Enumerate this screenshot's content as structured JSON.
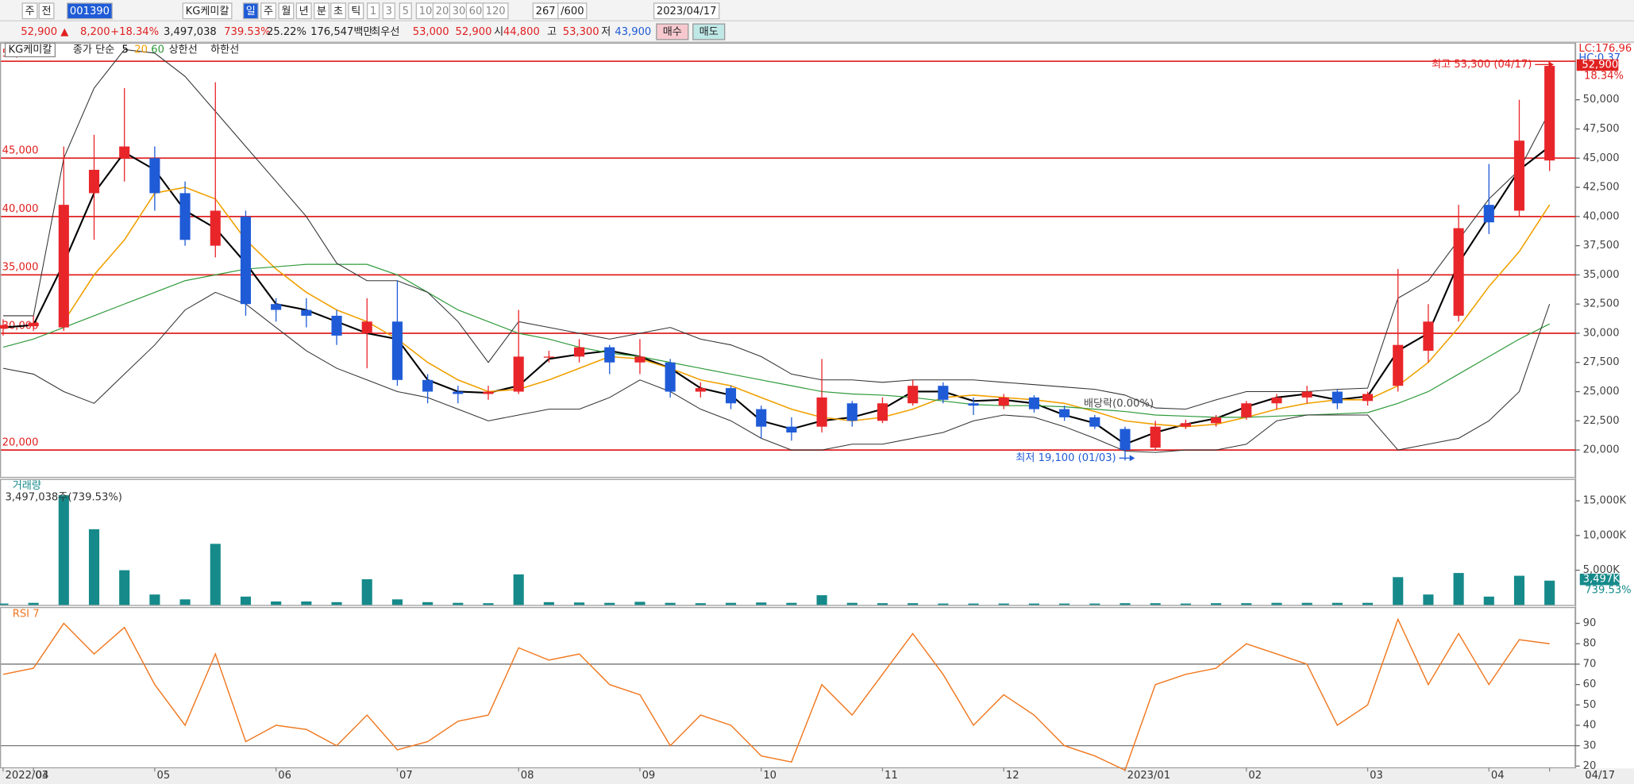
{
  "toolbar": {
    "items": [
      "주",
      "전",
      "001390",
      "KG케미칼",
      "일",
      "주",
      "월",
      "년",
      "분",
      "초",
      "틱",
      "1",
      "3",
      "5",
      "10",
      "20",
      "30",
      "60",
      "120",
      "267",
      "/600",
      "2023/04/17"
    ]
  },
  "quote": {
    "items": [
      "52,900 ▲",
      "8,200",
      "+18.34%",
      "3,497,038",
      "739.53%",
      "25.22%",
      "176,547백만",
      "최우선",
      "53,000",
      "52,900",
      "시",
      "44,800",
      "고",
      "53,300",
      "저",
      "43,900",
      "매수",
      "매도"
    ]
  },
  "chart_data": [
    {
      "type": "candlestick",
      "title": "KG케미칼",
      "ma_label": "종가 단순",
      "categories": [
        "2022/03",
        "04",
        null,
        null,
        null,
        "05",
        null,
        null,
        null,
        "06",
        null,
        null,
        null,
        "07",
        null,
        null,
        null,
        "08",
        null,
        null,
        null,
        "09",
        null,
        null,
        null,
        "10",
        null,
        null,
        null,
        "11",
        null,
        null,
        null,
        "12",
        null,
        null,
        null,
        "2023/01",
        null,
        null,
        null,
        "02",
        null,
        null,
        null,
        "03",
        null,
        null,
        null,
        "04",
        null,
        "04/17"
      ],
      "open": [
        30400,
        30600,
        30500,
        42000,
        45000,
        45000,
        42000,
        37500,
        40000,
        32500,
        32000,
        31500,
        30000,
        31000,
        26000,
        25000,
        24800,
        25000,
        28000,
        28000,
        28800,
        27500,
        27500,
        25000,
        25300,
        23500,
        22000,
        22000,
        24000,
        22500,
        24000,
        25500,
        24000,
        23800,
        24500,
        23500,
        22800,
        21800,
        20200,
        22000,
        22300,
        22800,
        24000,
        24500,
        25000,
        24200,
        25500,
        28500,
        31500,
        41000,
        40500,
        44800
      ],
      "high": [
        31200,
        31500,
        46000,
        47000,
        51000,
        46000,
        43000,
        51500,
        40500,
        33000,
        33000,
        32000,
        33000,
        34500,
        26500,
        25500,
        25500,
        32000,
        28500,
        29500,
        29000,
        29500,
        27800,
        25800,
        25500,
        23800,
        22800,
        27800,
        24200,
        24500,
        26000,
        25800,
        24500,
        24800,
        24700,
        23800,
        23000,
        22000,
        22500,
        22600,
        23000,
        24200,
        24800,
        25500,
        25200,
        25000,
        35500,
        32500,
        41000,
        44500,
        50000,
        53300
      ],
      "low": [
        29800,
        30200,
        30200,
        38000,
        43000,
        40500,
        37500,
        36500,
        31500,
        31000,
        30500,
        29000,
        27000,
        25500,
        24000,
        24000,
        24300,
        24800,
        27500,
        27500,
        26500,
        26500,
        24500,
        24500,
        23500,
        21000,
        20800,
        21500,
        22000,
        22300,
        23800,
        24000,
        23000,
        23500,
        23200,
        22500,
        21800,
        19100,
        20000,
        21800,
        22000,
        22600,
        23500,
        24000,
        23500,
        23800,
        25000,
        27500,
        31000,
        38500,
        40000,
        43900
      ],
      "close": [
        30700,
        30900,
        41000,
        44000,
        46000,
        42000,
        38000,
        40500,
        32500,
        32000,
        31500,
        29800,
        31000,
        26000,
        25000,
        24800,
        25000,
        28000,
        28000,
        28800,
        27500,
        28000,
        25000,
        25300,
        24000,
        22000,
        21500,
        24500,
        22500,
        24000,
        25500,
        24300,
        23800,
        24500,
        23500,
        22800,
        22000,
        20000,
        22000,
        22300,
        22800,
        24000,
        24500,
        25000,
        24000,
        24800,
        29000,
        31000,
        39000,
        39500,
        46500,
        52900
      ],
      "up_color": "#e8262a",
      "down_color": "#1f5bd6",
      "series": [
        {
          "name": "5",
          "color": "#000000",
          "values": [
            30500,
            30700,
            36000,
            42000,
            45500,
            44000,
            40500,
            39000,
            36000,
            32500,
            32000,
            31000,
            30000,
            29500,
            26000,
            25000,
            24900,
            25500,
            27800,
            28200,
            28500,
            28000,
            27000,
            25300,
            24700,
            22500,
            21800,
            22500,
            22800,
            23500,
            25000,
            25000,
            24200,
            24300,
            24000,
            23000,
            22300,
            20500,
            21500,
            22200,
            22700,
            23700,
            24500,
            24800,
            24300,
            24600,
            28500,
            30000,
            36000,
            40000,
            44000,
            46000
          ]
        },
        {
          "name": "20",
          "color": "#f0a000",
          "values": [
            null,
            null,
            31000,
            35000,
            38000,
            42000,
            42500,
            41500,
            38000,
            35500,
            33500,
            32000,
            31000,
            29500,
            27500,
            26000,
            25000,
            25200,
            26000,
            27000,
            28000,
            27800,
            27000,
            26000,
            25500,
            24500,
            23500,
            22800,
            22500,
            22800,
            23500,
            24500,
            24700,
            24500,
            24300,
            24000,
            23300,
            22500,
            22200,
            22000,
            22200,
            22800,
            23500,
            24000,
            24300,
            24300,
            25500,
            27500,
            30500,
            34000,
            37000,
            41000
          ]
        },
        {
          "name": "60",
          "color": "#2e9a3a",
          "values": [
            28800,
            29500,
            30500,
            31500,
            32500,
            33500,
            34500,
            35000,
            35500,
            35700,
            35900,
            35900,
            35900,
            35000,
            33500,
            32000,
            31000,
            30000,
            29500,
            28800,
            28300,
            28000,
            27500,
            27000,
            26500,
            26000,
            25500,
            25000,
            24800,
            24700,
            24500,
            24200,
            23900,
            23800,
            23800,
            23700,
            23500,
            23300,
            23000,
            22900,
            22800,
            22800,
            22900,
            23000,
            23100,
            23200,
            24000,
            25000,
            26500,
            28000,
            29500,
            30800
          ]
        },
        {
          "name": "상한선",
          "color": "#333333",
          "values": [
            31500,
            31500,
            45000,
            51000,
            54300,
            54000,
            52000,
            49000,
            46000,
            43000,
            40000,
            36000,
            34500,
            34500,
            33500,
            31000,
            27500,
            31000,
            30500,
            30000,
            29500,
            30000,
            30500,
            29500,
            29000,
            28000,
            26500,
            26000,
            26000,
            25800,
            26000,
            26000,
            26000,
            25800,
            25600,
            25400,
            25200,
            24700,
            23600,
            23500,
            24300,
            25000,
            25000,
            25000,
            25200,
            25300,
            33000,
            34500,
            38000,
            41500,
            44000,
            49000
          ]
        },
        {
          "name": "하한선",
          "color": "#333333",
          "values": [
            27000,
            26500,
            25000,
            24000,
            26500,
            29000,
            32000,
            33500,
            32500,
            30500,
            28500,
            27000,
            26000,
            25000,
            24500,
            23500,
            22500,
            23000,
            23500,
            23500,
            24500,
            26000,
            25000,
            23500,
            22500,
            21000,
            20000,
            20000,
            20500,
            20500,
            21000,
            21500,
            22500,
            23000,
            22800,
            22000,
            21000,
            19900,
            19800,
            20000,
            20000,
            20500,
            22500,
            23000,
            23000,
            23000,
            20000,
            20500,
            21000,
            22500,
            25000,
            32500
          ]
        }
      ],
      "ylim": [
        17700,
        54800
      ],
      "yticks": [
        {
          "value": 20000,
          "label": "20,000"
        },
        {
          "value": 22500,
          "label": "22,500"
        },
        {
          "value": 25000,
          "label": "25,000"
        },
        {
          "value": 27500,
          "label": "27,500"
        },
        {
          "value": 30000,
          "label": "30,000"
        },
        {
          "value": 32500,
          "label": "32,500"
        },
        {
          "value": 35000,
          "label": "35,000"
        },
        {
          "value": 37500,
          "label": "37,500"
        },
        {
          "value": 40000,
          "label": "40,000"
        },
        {
          "value": 42500,
          "label": "42,500"
        },
        {
          "value": 45000,
          "label": "45,000"
        },
        {
          "value": 47500,
          "label": "47,500"
        },
        {
          "value": 50000,
          "label": "50,000"
        }
      ],
      "h_lines": [
        {
          "value": 20000,
          "label": "20,000"
        },
        {
          "value": 30000,
          "label": "30,000"
        },
        {
          "value": 35000,
          "label": "35,000"
        },
        {
          "value": 40000,
          "label": "40,000"
        },
        {
          "value": 45000,
          "label": "45,000"
        },
        {
          "value": 53300,
          "label": "53,300"
        }
      ],
      "h_line_color": "#e02020",
      "annotations": {
        "high": "최고 53,300 (04/17)",
        "low": "최저 19,100 (01/03)",
        "dividend": "배당락(0.00%)"
      },
      "last_price_label": "52,900",
      "last_change_label": "18.34%",
      "lc_label": "LC:176.96",
      "hc_label": "HC:0.37"
    },
    {
      "type": "bar",
      "title": "거래량",
      "subtitle": "3,497,038주(739.53%)",
      "color": "#168a8a",
      "values": [
        200,
        300,
        15800,
        10900,
        5000,
        1500,
        800,
        8800,
        1200,
        500,
        500,
        400,
        3700,
        800,
        400,
        300,
        250,
        4400,
        400,
        350,
        300,
        450,
        300,
        250,
        300,
        350,
        300,
        1400,
        300,
        250,
        250,
        200,
        200,
        200,
        200,
        200,
        200,
        250,
        250,
        200,
        250,
        250,
        300,
        300,
        300,
        300,
        4000,
        1500,
        4600,
        1200,
        4200,
        3497
      ],
      "ylim": [
        0,
        18000
      ],
      "yticks": [
        {
          "value": 5000,
          "label": "5,000K"
        },
        {
          "value": 10000,
          "label": "10,000K"
        },
        {
          "value": 15000,
          "label": "15,000K"
        }
      ],
      "last_label": "3,497K",
      "last_pct_label": "739.53%"
    },
    {
      "type": "line",
      "title": "RSI 7",
      "color": "#f07820",
      "values": [
        65,
        68,
        90,
        75,
        88,
        60,
        40,
        75,
        32,
        40,
        38,
        30,
        45,
        28,
        32,
        42,
        45,
        78,
        72,
        75,
        60,
        55,
        30,
        45,
        40,
        25,
        22,
        60,
        45,
        65,
        85,
        65,
        40,
        55,
        45,
        30,
        25,
        18,
        60,
        65,
        68,
        80,
        75,
        70,
        40,
        50,
        92,
        60,
        85,
        60,
        82,
        80
      ],
      "ylim": [
        19.4,
        97.5
      ],
      "yticks": [
        20,
        30,
        40,
        50,
        60,
        70,
        80,
        90
      ],
      "ref_lines": [
        30,
        70
      ]
    }
  ]
}
